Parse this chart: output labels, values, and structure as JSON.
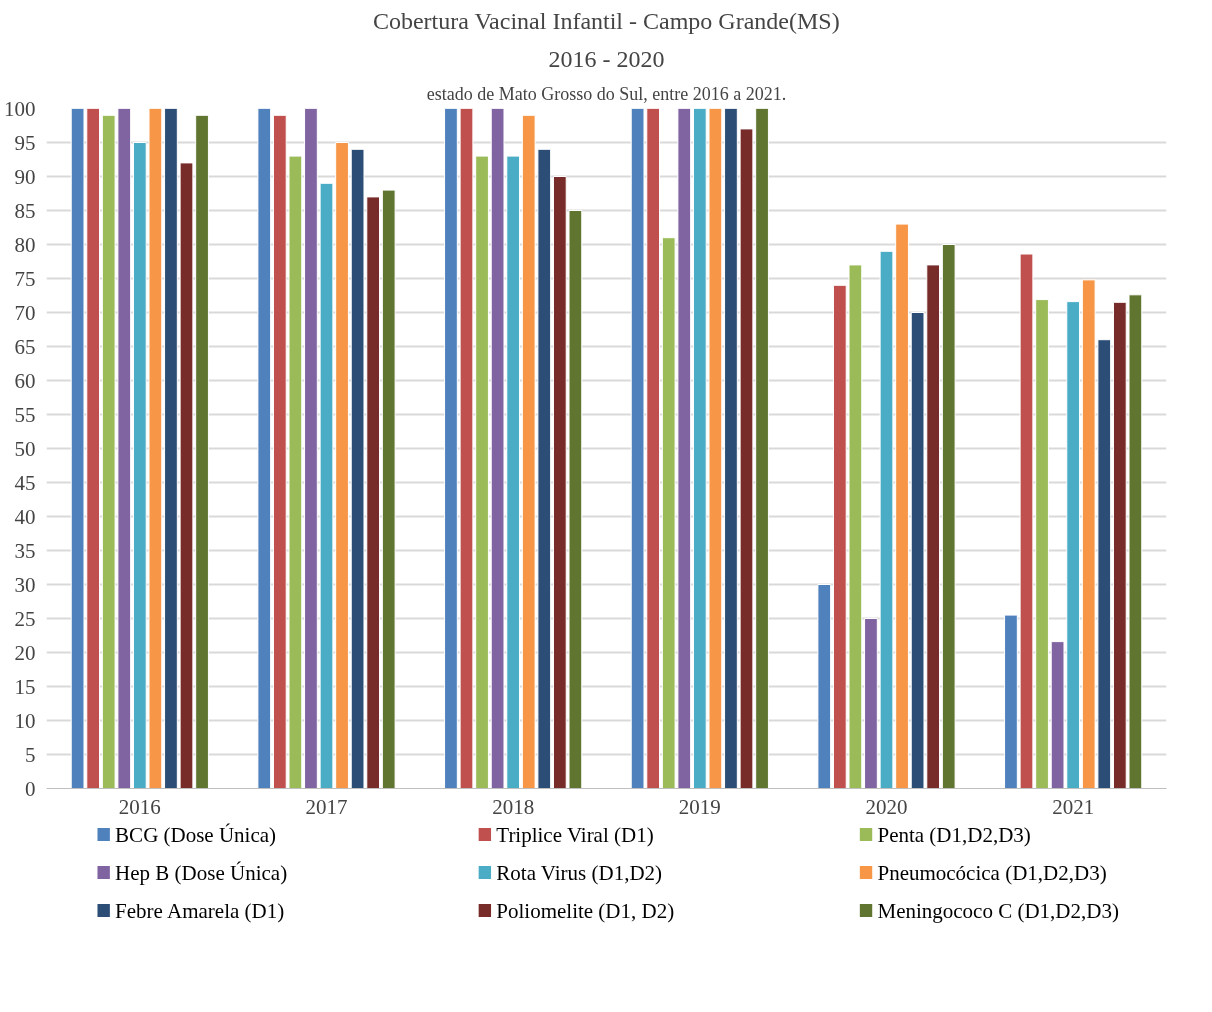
{
  "chart_data": {
    "type": "bar",
    "title": "Cobertura Vacinal Infantil - Campo Grande(MS)",
    "subtitle": "2016 - 2020",
    "annotations": [
      "estado de Mato Grosso do Sul, entre 2016 a 2021."
    ],
    "categories": [
      "2016",
      "2017",
      "2018",
      "2019",
      "2020",
      "2021"
    ],
    "series": [
      {
        "name": "BCG (Dose Única)",
        "color": "#4f81bd",
        "values": [
          100,
          100,
          100,
          100,
          30,
          25.5
        ]
      },
      {
        "name": "Triplice Viral (D1)",
        "color": "#c0504d",
        "values": [
          100,
          99,
          100,
          100,
          74,
          78.6
        ]
      },
      {
        "name": "Penta (D1,D2,D3)",
        "color": "#9bbb59",
        "values": [
          99,
          93,
          93,
          81,
          77,
          71.9
        ]
      },
      {
        "name": "Hep B (Dose Única)",
        "color": "#8064a2",
        "values": [
          100,
          100,
          100,
          100,
          25,
          21.6
        ]
      },
      {
        "name": "Rota Virus (D1,D2)",
        "color": "#4bacc6",
        "values": [
          95,
          89,
          93,
          100,
          79,
          71.6
        ]
      },
      {
        "name": "Pneumocócica (D1,D2,D3)",
        "color": "#f79646",
        "values": [
          100,
          95,
          99,
          100,
          83,
          74.8
        ]
      },
      {
        "name": "Febre Amarela (D1)",
        "color": "#2c4d75",
        "values": [
          100,
          94,
          94,
          100,
          70,
          66
        ]
      },
      {
        "name": "Poliomelite (D1, D2)",
        "color": "#772c2a",
        "values": [
          92,
          87,
          90,
          97,
          77,
          71.5
        ]
      },
      {
        "name": "Meningococo C (D1,D2,D3)",
        "color": "#5f7530",
        "values": [
          99,
          88,
          85,
          100,
          80,
          72.6
        ]
      }
    ],
    "ylim": [
      0,
      100
    ],
    "yticks": [
      0,
      5,
      10,
      15,
      20,
      25,
      30,
      35,
      40,
      45,
      50,
      55,
      60,
      65,
      70,
      75,
      80,
      85,
      90,
      95,
      100
    ],
    "grid": "y",
    "legend": "bottom"
  }
}
